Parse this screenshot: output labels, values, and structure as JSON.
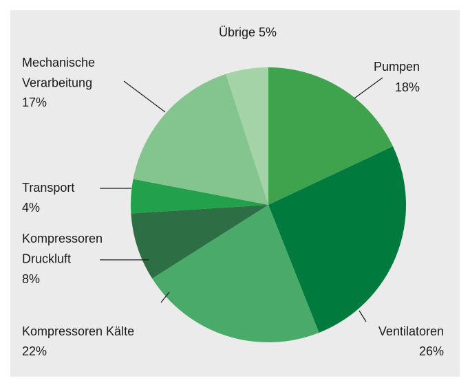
{
  "chart_data": {
    "type": "pie",
    "categories": [
      "Pumpen",
      "Ventilatoren",
      "Kompressoren Kälte",
      "Kompressoren Druckluft",
      "Transport",
      "Mechanische Verarbeitung",
      "Übrige"
    ],
    "values": [
      18,
      26,
      22,
      8,
      4,
      17,
      5
    ],
    "value_labels": [
      "18%",
      "26%",
      "22%",
      "8%",
      "4%",
      "17%",
      "5%"
    ],
    "colors": [
      "#3fa34d",
      "#007a3d",
      "#4aaa6a",
      "#2e6e45",
      "#22a04b",
      "#84c48f",
      "#a3d3a6"
    ]
  }
}
